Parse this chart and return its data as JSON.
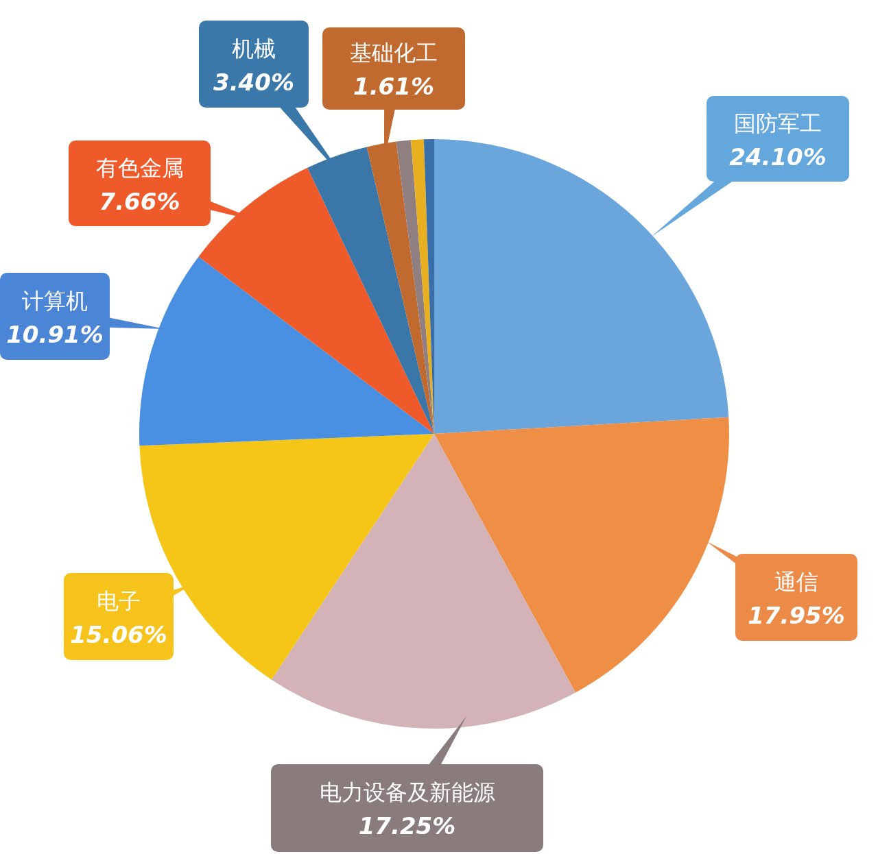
{
  "chart_data": {
    "type": "pie",
    "categories": [
      "国防军工",
      "通信",
      "电力设备及新能源",
      "电子",
      "计算机",
      "有色金属",
      "机械",
      "基础化工",
      null,
      null,
      null
    ],
    "values": [
      24.1,
      17.95,
      17.25,
      15.06,
      10.91,
      7.66,
      3.4,
      1.61,
      0.8,
      0.7,
      0.56
    ],
    "value_labels": [
      "24.10%",
      "17.95%",
      "17.25%",
      "15.06%",
      "10.91%",
      "7.66%",
      "3.40%",
      "1.61%",
      null,
      null,
      null
    ],
    "colors": [
      "#6aa6dc",
      "#ee8f45",
      "#d3b3b7",
      "#f5c518",
      "#4a90e2",
      "#ee5a2a",
      "#3a76a8",
      "#c06a30",
      "#8f7f80",
      "#e8b020",
      "#3a6ea8"
    ]
  }
}
